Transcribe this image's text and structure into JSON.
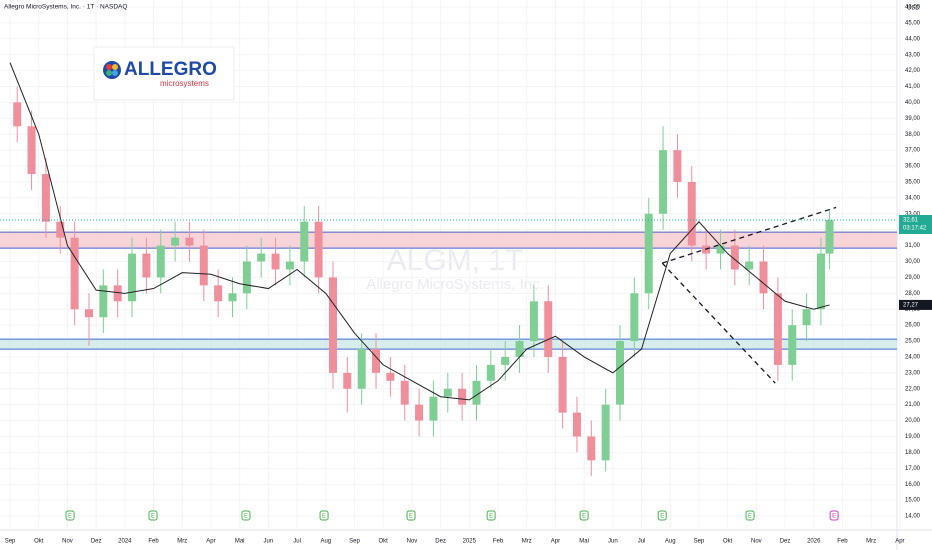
{
  "chart_data": {
    "type": "candlestick",
    "title": "Allegro MicroSystems, Inc. · 1T · NASDAQ",
    "currency": "USD",
    "watermark": "ALGM, 1T",
    "watermark_subtitle": "Allegro MicroSystems, Inc.",
    "logo": {
      "name": "ALLEGRO",
      "tagline": "microsystems"
    },
    "xlim": [
      -0.35,
      30.9
    ],
    "ylim": [
      13.12,
      46.44
    ],
    "xticks": [
      {
        "value": 0,
        "label": "Sep"
      },
      {
        "value": 1,
        "label": "Okt"
      },
      {
        "value": 2,
        "label": "Nov"
      },
      {
        "value": 3,
        "label": "Dez"
      },
      {
        "value": 4,
        "label": "2024"
      },
      {
        "value": 5,
        "label": "Feb"
      },
      {
        "value": 6,
        "label": "Mrz"
      },
      {
        "value": 7,
        "label": "Apr"
      },
      {
        "value": 8,
        "label": "Mai"
      },
      {
        "value": 9,
        "label": "Jun"
      },
      {
        "value": 10,
        "label": "Jul"
      },
      {
        "value": 11,
        "label": "Aug"
      },
      {
        "value": 12,
        "label": "Sep"
      },
      {
        "value": 13,
        "label": "Okt"
      },
      {
        "value": 14,
        "label": "Nov"
      },
      {
        "value": 15,
        "label": "Dez"
      },
      {
        "value": 16,
        "label": "2025"
      },
      {
        "value": 17,
        "label": "Feb"
      },
      {
        "value": 18,
        "label": "Mrz"
      },
      {
        "value": 19,
        "label": "Apr"
      },
      {
        "value": 20,
        "label": "Mai"
      },
      {
        "value": 21,
        "label": "Jun"
      },
      {
        "value": 22,
        "label": "Jul"
      },
      {
        "value": 23,
        "label": "Aug"
      },
      {
        "value": 24,
        "label": "Sep"
      },
      {
        "value": 25,
        "label": "Okt"
      },
      {
        "value": 26,
        "label": "Nov"
      },
      {
        "value": 27,
        "label": "Dez"
      },
      {
        "value": 28,
        "label": "2026"
      },
      {
        "value": 29,
        "label": "Feb"
      },
      {
        "value": 30,
        "label": "Mrz"
      },
      {
        "value": 31,
        "label": "Apr"
      }
    ],
    "yticks": [
      {
        "value": 14,
        "label": "14,00"
      },
      {
        "value": 15,
        "label": "15,00"
      },
      {
        "value": 16,
        "label": "16,00"
      },
      {
        "value": 17,
        "label": "17,00"
      },
      {
        "value": 18,
        "label": "18,00"
      },
      {
        "value": 19,
        "label": "19,00"
      },
      {
        "value": 20,
        "label": "20,00"
      },
      {
        "value": 21,
        "label": "21,00"
      },
      {
        "value": 22,
        "label": "22,00"
      },
      {
        "value": 23,
        "label": "23,00"
      },
      {
        "value": 24,
        "label": "24,00"
      },
      {
        "value": 25,
        "label": "25,00"
      },
      {
        "value": 26,
        "label": "26,00"
      },
      {
        "value": 27,
        "label": "27,00"
      },
      {
        "value": 28,
        "label": "28,00"
      },
      {
        "value": 29,
        "label": "29,00"
      },
      {
        "value": 30,
        "label": "30,00"
      },
      {
        "value": 31,
        "label": "31,00"
      },
      {
        "value": 32,
        "label": "32,00"
      },
      {
        "value": 33,
        "label": "33,00"
      },
      {
        "value": 34,
        "label": "34,00"
      },
      {
        "value": 35,
        "label": "35,00"
      },
      {
        "value": 36,
        "label": "36,00"
      },
      {
        "value": 37,
        "label": "37,00"
      },
      {
        "value": 38,
        "label": "38,00"
      },
      {
        "value": 39,
        "label": "39,00"
      },
      {
        "value": 40,
        "label": "40,00"
      },
      {
        "value": 41,
        "label": "41,00"
      },
      {
        "value": 42,
        "label": "42,00"
      },
      {
        "value": 43,
        "label": "43,00"
      },
      {
        "value": 44,
        "label": "44,00"
      },
      {
        "value": 45,
        "label": "45,00"
      },
      {
        "value": 46,
        "label": "46,00"
      }
    ],
    "up_color": "#7fcf95",
    "down_color": "#f08f9c",
    "x": [
      0.25,
      0.75,
      1.25,
      1.75,
      2.25,
      2.75,
      3.25,
      3.75,
      4.25,
      4.75,
      5.25,
      5.75,
      6.25,
      6.75,
      7.25,
      7.75,
      8.25,
      8.75,
      9.25,
      9.75,
      10.25,
      10.75,
      11.25,
      11.75,
      12.25,
      12.75,
      13.25,
      13.75,
      14.25,
      14.75,
      15.25,
      15.75,
      16.25,
      16.75,
      17.25,
      17.75,
      18.25,
      18.75,
      19.25,
      19.75,
      20.25,
      20.75,
      21.25,
      21.75,
      22.25,
      22.75,
      23.25,
      23.75,
      24.25,
      24.75,
      25.25,
      25.75,
      26.25,
      26.75,
      27.25,
      27.75,
      28.25,
      28.55
    ],
    "open": [
      40,
      38.5,
      35.5,
      32.5,
      31.5,
      27,
      26.5,
      28.5,
      27.5,
      30.5,
      29,
      31,
      31.5,
      31,
      28.5,
      27.5,
      28,
      30,
      30.5,
      29.5,
      30,
      32.5,
      29,
      23,
      22,
      24.5,
      23,
      22.5,
      21,
      20,
      21.5,
      22,
      21,
      22.5,
      23.5,
      24,
      25,
      27.5,
      24,
      20.5,
      19,
      17.5,
      21,
      25,
      28,
      33,
      37,
      35,
      31,
      30.5,
      31,
      29.5,
      30,
      28,
      23.5,
      26,
      27,
      30.5
    ],
    "high": [
      41,
      39.5,
      36.5,
      33.5,
      32.5,
      28,
      29.5,
      29.5,
      31.5,
      31.5,
      32,
      32.5,
      32.5,
      32,
      29.5,
      29,
      31,
      31.5,
      31.5,
      31,
      33.5,
      33.5,
      30,
      24,
      25.5,
      25.5,
      24,
      23.5,
      22,
      22.5,
      23,
      23,
      23.5,
      24.5,
      25,
      26,
      28.5,
      28.5,
      25,
      21.5,
      20,
      22,
      26,
      29,
      34,
      38.5,
      38,
      36,
      32,
      32,
      32,
      31,
      31,
      29,
      27,
      28,
      31.5,
      33.2
    ],
    "low": [
      37.5,
      34.5,
      31.5,
      30.5,
      26,
      24.7,
      25.5,
      26.5,
      26.5,
      28,
      28,
      30,
      30,
      27.5,
      26.5,
      26.5,
      27,
      29,
      28.5,
      28.5,
      29,
      28,
      22,
      20.5,
      21,
      22,
      21.5,
      20,
      19,
      19,
      20.5,
      20,
      20,
      22,
      22.5,
      23,
      24,
      23,
      19.5,
      18,
      16.5,
      16.8,
      20,
      24,
      27,
      32,
      34,
      30,
      29.5,
      29.5,
      28.5,
      28.5,
      27,
      22.5,
      22.5,
      25,
      26,
      29.5
    ],
    "close": [
      38.5,
      35.5,
      32.5,
      31.5,
      27,
      26.5,
      28.5,
      27.5,
      30.5,
      29,
      31,
      31.5,
      31,
      28.5,
      27.5,
      28,
      30,
      30.5,
      29.5,
      30,
      32.5,
      29,
      23,
      22,
      24.5,
      23,
      22.5,
      21,
      20,
      21.5,
      22,
      21,
      22.5,
      23.5,
      24,
      25,
      27.5,
      24,
      20.5,
      19,
      17.5,
      21,
      25,
      28,
      33,
      37,
      35,
      31,
      30.5,
      31,
      29.5,
      30,
      28,
      23.5,
      26,
      27,
      30.5,
      32.61
    ],
    "ma": {
      "color": "#222222",
      "x": [
        0,
        1,
        2,
        3,
        4,
        5,
        6,
        7,
        8,
        9,
        10,
        11,
        12,
        13,
        14,
        15,
        16,
        17,
        18,
        19,
        20,
        21,
        22,
        23,
        24,
        25,
        26,
        27,
        28,
        28.55
      ],
      "values": [
        42.5,
        38,
        31,
        28.2,
        28,
        28.3,
        29.3,
        29.2,
        28.6,
        28.3,
        29.5,
        28,
        25.5,
        23.5,
        22.5,
        21.5,
        21.3,
        22.5,
        24.5,
        25.3,
        24,
        23,
        24.5,
        30.5,
        32.5,
        30.5,
        29,
        27.5,
        27,
        27.27
      ]
    },
    "zones": [
      {
        "low": 30.84,
        "high": 31.85,
        "fill": "#f6c9cf",
        "border": "#4a5fd0"
      },
      {
        "low": 24.49,
        "high": 25.12,
        "fill": "#cde9e6",
        "border": "#3f6bd0"
      }
    ],
    "trendlines": [
      {
        "x": [
          22.72,
          28.78
        ],
        "y": [
          29.9,
          33.4
        ]
      },
      {
        "x": [
          22.72,
          26.66
        ],
        "y": [
          29.9,
          22.35
        ]
      }
    ],
    "last_price": {
      "value": 32.61,
      "label": "32,61",
      "countdown": "03:17:42",
      "color": "#22ab94"
    },
    "ma_price": {
      "value": 27.27,
      "label": "27,27",
      "color": "#131722"
    },
    "earnings": {
      "label": "E",
      "x": [
        2.09,
        4.98,
        8.22,
        10.94,
        13.97,
        16.76,
        20.0,
        22.72,
        25.78
      ],
      "upcoming_x": 28.71
    }
  }
}
